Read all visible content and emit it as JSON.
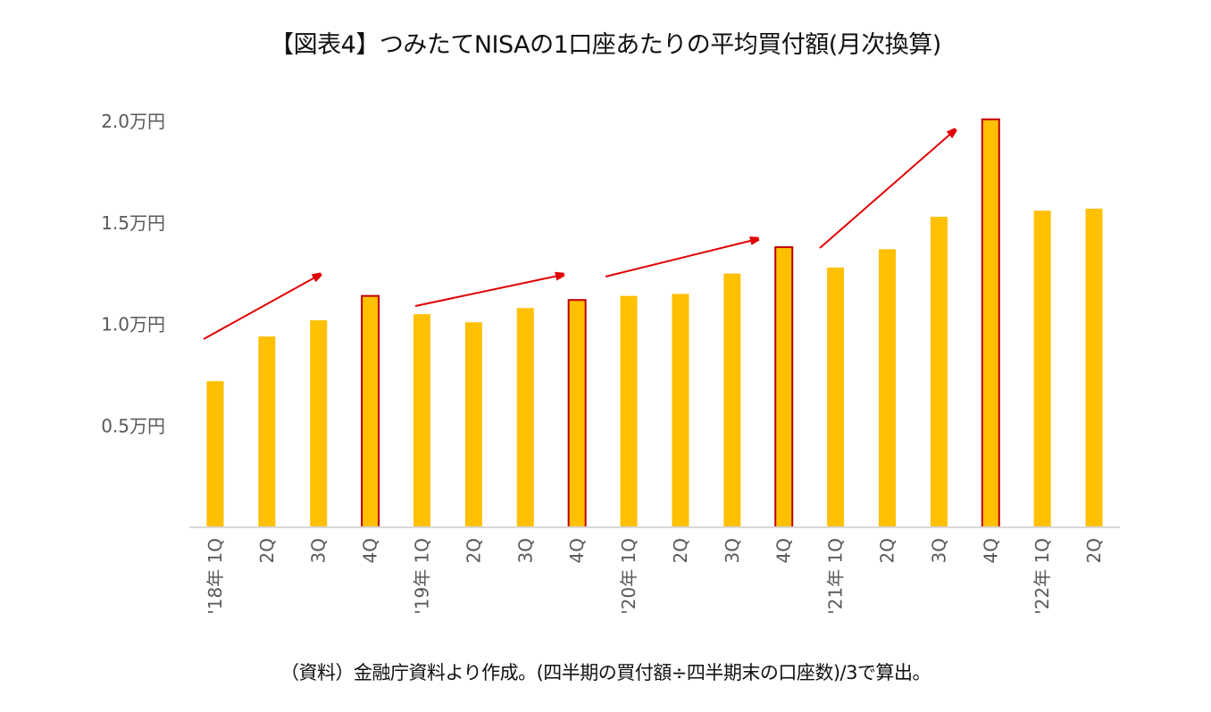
{
  "title": "【図表4】つみたてNISAの1口座あたりの平均買付額(月次換算)",
  "note": "（資料）金融庁資料より作成。(四半期の買付額÷四半期末の口座数)/3で算出。",
  "chart_data": {
    "type": "bar",
    "title": "【図表4】つみたてNISAの1口座あたりの平均買付額(月次換算)",
    "xlabel": "",
    "ylabel": "",
    "ylim": [
      0,
      2.0
    ],
    "yticks": [
      0.5,
      1.0,
      1.5,
      2.0
    ],
    "ytick_labels": [
      "0.5万円",
      "1.0万円",
      "1.5万円",
      "2.0万円"
    ],
    "categories": [
      "'18年 1Q",
      "2Q",
      "3Q",
      "4Q",
      "'19年 1Q",
      "2Q",
      "3Q",
      "4Q",
      "'20年 1Q",
      "2Q",
      "3Q",
      "4Q",
      "'21年 1Q",
      "2Q",
      "3Q",
      "4Q",
      "'22年 1Q",
      "2Q"
    ],
    "values": [
      0.72,
      0.94,
      1.02,
      1.14,
      1.05,
      1.01,
      1.08,
      1.12,
      1.14,
      1.15,
      1.25,
      1.38,
      1.28,
      1.37,
      1.53,
      2.01,
      1.56,
      1.57
    ],
    "highlighted": [
      false,
      false,
      false,
      true,
      false,
      false,
      false,
      true,
      false,
      false,
      false,
      true,
      false,
      false,
      false,
      true,
      false,
      false
    ],
    "unit": "万円",
    "grid": false,
    "legend": "none",
    "annotations": [
      {
        "type": "arrow",
        "from_category": "'18年 1Q",
        "to_category": "3Q"
      },
      {
        "type": "arrow",
        "from_category": "'19年 1Q",
        "to_category": "3Q"
      },
      {
        "type": "arrow",
        "from_category": "'20年 1Q",
        "to_category": "3Q"
      },
      {
        "type": "arrow",
        "from_category": "'21年 1Q",
        "to_category": "3Q"
      }
    ],
    "colors": {
      "bar": "#FFC000",
      "highlight_border": "#C00000",
      "arrow": "#E00000",
      "axis": "#D9D9D9",
      "text": "#595959"
    }
  }
}
